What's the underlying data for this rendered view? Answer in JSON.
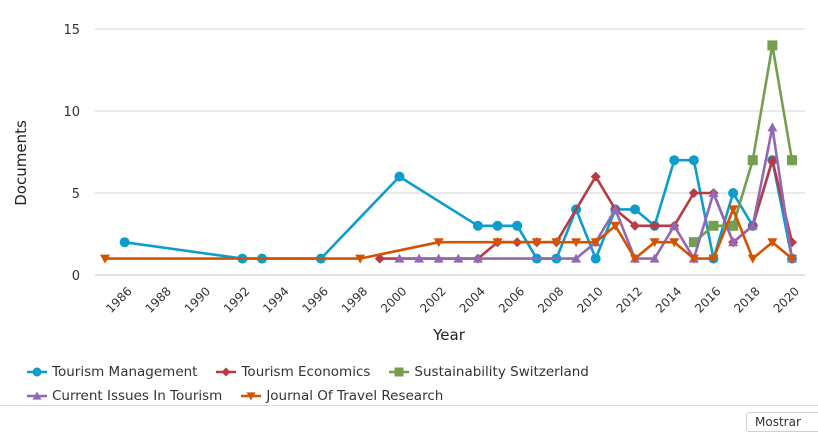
{
  "chart_data": {
    "type": "line",
    "title": "",
    "xlabel": "Year",
    "ylabel": "Documents",
    "xlim": [
      1985,
      2020
    ],
    "ylim": [
      0,
      15
    ],
    "yticks": [
      0,
      5,
      10,
      15
    ],
    "xticks": [
      1986,
      1988,
      1990,
      1992,
      1994,
      1996,
      1998,
      2000,
      2002,
      2004,
      2006,
      2008,
      2010,
      2012,
      2014,
      2016,
      2018,
      2020
    ],
    "grid": true,
    "legend_position": "bottom",
    "series": [
      {
        "name": "Tourism Management",
        "color": "#0d9dcc",
        "marker": "circle",
        "points": [
          [
            1986,
            2
          ],
          [
            1992,
            1
          ],
          [
            1993,
            1
          ],
          [
            1996,
            1
          ],
          [
            2000,
            6
          ],
          [
            2004,
            3
          ],
          [
            2005,
            3
          ],
          [
            2006,
            3
          ],
          [
            2007,
            1
          ],
          [
            2008,
            1
          ],
          [
            2009,
            4
          ],
          [
            2010,
            1
          ],
          [
            2011,
            4
          ],
          [
            2012,
            4
          ],
          [
            2013,
            3
          ],
          [
            2014,
            7
          ],
          [
            2015,
            7
          ],
          [
            2016,
            1
          ],
          [
            2017,
            5
          ],
          [
            2018,
            3
          ],
          [
            2019,
            7
          ],
          [
            2020,
            1
          ]
        ]
      },
      {
        "name": "Tourism Economics",
        "color": "#b83b43",
        "marker": "diamond",
        "points": [
          [
            1999,
            1
          ],
          [
            2004,
            1
          ],
          [
            2005,
            2
          ],
          [
            2006,
            2
          ],
          [
            2007,
            2
          ],
          [
            2008,
            2
          ],
          [
            2010,
            6
          ],
          [
            2011,
            4
          ],
          [
            2012,
            3
          ],
          [
            2013,
            3
          ],
          [
            2014,
            3
          ],
          [
            2015,
            5
          ],
          [
            2016,
            5
          ],
          [
            2017,
            2
          ],
          [
            2018,
            3
          ],
          [
            2019,
            7
          ],
          [
            2020,
            2
          ]
        ]
      },
      {
        "name": "Sustainability Switzerland",
        "color": "#769e4f",
        "marker": "square",
        "points": [
          [
            2015,
            2
          ],
          [
            2016,
            3
          ],
          [
            2017,
            3
          ],
          [
            2018,
            7
          ],
          [
            2019,
            14
          ],
          [
            2020,
            7
          ]
        ]
      },
      {
        "name": "Current Issues In Tourism",
        "color": "#9467b5",
        "marker": "triangle-up",
        "points": [
          [
            2000,
            1
          ],
          [
            2001,
            1
          ],
          [
            2002,
            1
          ],
          [
            2003,
            1
          ],
          [
            2004,
            1
          ],
          [
            2009,
            1
          ],
          [
            2010,
            2
          ],
          [
            2011,
            4
          ],
          [
            2012,
            1
          ],
          [
            2013,
            1
          ],
          [
            2014,
            3
          ],
          [
            2015,
            1
          ],
          [
            2016,
            5
          ],
          [
            2017,
            2
          ],
          [
            2018,
            3
          ],
          [
            2019,
            9
          ],
          [
            2020,
            1
          ]
        ]
      },
      {
        "name": "Journal Of Travel Research",
        "color": "#d35400",
        "marker": "triangle-down",
        "points": [
          [
            1985,
            1
          ],
          [
            1998,
            1
          ],
          [
            2002,
            2
          ],
          [
            2005,
            2
          ],
          [
            2007,
            2
          ],
          [
            2008,
            2
          ],
          [
            2009,
            2
          ],
          [
            2010,
            2
          ],
          [
            2011,
            3
          ],
          [
            2012,
            1
          ],
          [
            2013,
            2
          ],
          [
            2014,
            2
          ],
          [
            2015,
            1
          ],
          [
            2016,
            1
          ],
          [
            2017,
            4
          ],
          [
            2018,
            1
          ],
          [
            2019,
            2
          ],
          [
            2020,
            1
          ]
        ]
      }
    ]
  },
  "ui": {
    "more_button_label": "Mostrar"
  }
}
